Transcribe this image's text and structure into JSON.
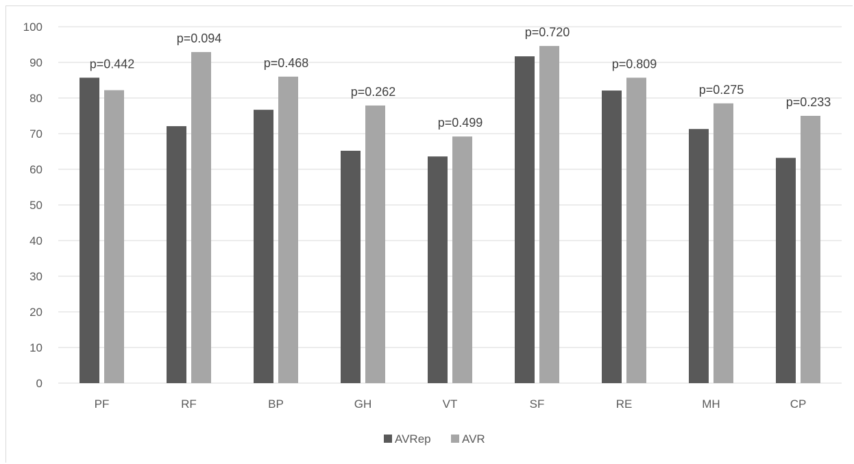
{
  "chart_data": {
    "type": "bar",
    "title": "",
    "xlabel": "",
    "ylabel": "",
    "ylim": [
      0,
      100
    ],
    "yticks": [
      0,
      10,
      20,
      30,
      40,
      50,
      60,
      70,
      80,
      90,
      100
    ],
    "grid": true,
    "legend_position": "bottom",
    "categories": [
      "PF",
      "RF",
      "BP",
      "GH",
      "VT",
      "SF",
      "RE",
      "MH",
      "CP"
    ],
    "series": [
      {
        "name": "AVRep",
        "color": "#595959",
        "values": [
          85.7,
          72.1,
          76.7,
          65.2,
          63.6,
          91.7,
          82.1,
          71.3,
          63.2
        ]
      },
      {
        "name": "AVR",
        "color": "#a6a6a6",
        "values": [
          82.2,
          92.9,
          86.0,
          77.9,
          69.2,
          94.6,
          85.7,
          78.5,
          75.0
        ]
      }
    ],
    "annotations": [
      "p=0.442",
      "p=0.094",
      "p=0.468",
      "p=0.262",
      "p=0.499",
      "p=0.720",
      "p=0.809",
      "p=0.275",
      "p=0.233"
    ]
  }
}
